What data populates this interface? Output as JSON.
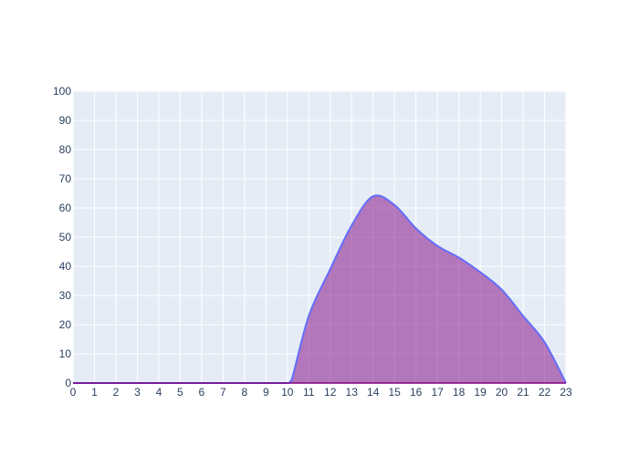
{
  "chart_data": {
    "type": "area",
    "x": [
      0,
      1,
      2,
      3,
      4,
      5,
      6,
      7,
      8,
      9,
      10,
      10.2,
      11,
      12,
      13,
      14,
      15,
      16,
      17,
      18,
      19,
      20,
      21,
      22,
      23
    ],
    "y": [
      0,
      0,
      0,
      0,
      0,
      0,
      0,
      0,
      0,
      0,
      0,
      1,
      23,
      39,
      54,
      64,
      61,
      53,
      47,
      43,
      38,
      32,
      23,
      14,
      0
    ],
    "xlim": [
      0,
      23
    ],
    "ylim": [
      0,
      100
    ],
    "xticks": [
      0,
      1,
      2,
      3,
      4,
      5,
      6,
      7,
      8,
      9,
      10,
      11,
      12,
      13,
      14,
      15,
      16,
      17,
      18,
      19,
      20,
      21,
      22,
      23
    ],
    "yticks": [
      0,
      10,
      20,
      30,
      40,
      50,
      60,
      70,
      80,
      90,
      100
    ],
    "grid": true,
    "legend": "none",
    "colors": {
      "line": "#636efa",
      "fill": "rgba(128, 0, 128, 0.5)",
      "plot_background": "#e5ecf6",
      "grid": "#ffffff",
      "baseline": "#800080",
      "tick_text": "#2a3f5f"
    }
  }
}
